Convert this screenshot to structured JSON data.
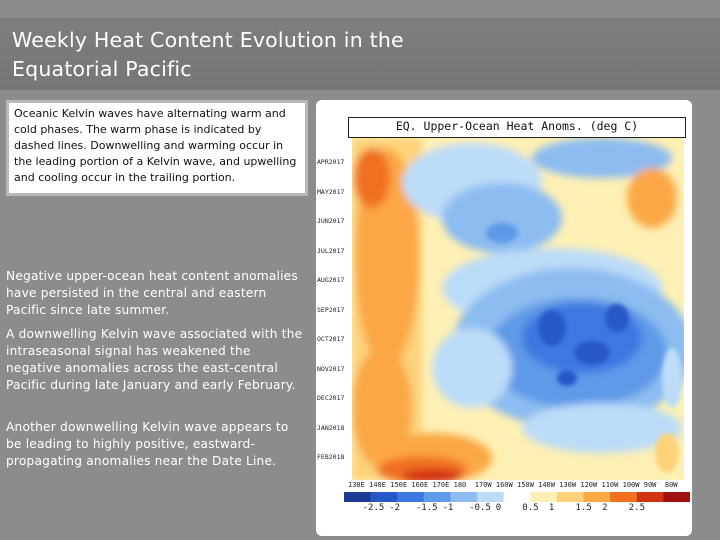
{
  "slide": {
    "title": "Weekly Heat Content Evolution in the Equatorial Pacific",
    "note": "Oceanic Kelvin waves have alternating warm and cold phases. The warm phase is indicated by dashed lines. Downwelling and warming occur in the leading portion of a Kelvin wave, and upwelling and cooling occur in the trailing portion.",
    "paragraphs": [
      "Negative upper-ocean heat content anomalies have persisted in the central and eastern Pacific since late summer.",
      "A downwelling Kelvin wave associated with the intraseasonal signal has weakened the negative anomalies across the east-central Pacific during late January and early February.",
      "Another downwelling Kelvin wave appears to be leading to highly positive, eastward-propagating anomalies near the Date Line."
    ]
  },
  "figure": {
    "title": "EQ. Upper-Ocean Heat Anoms. (deg C)",
    "y_ticks": [
      "APR2017",
      "MAY2017",
      "JUN2017",
      "JUL2017",
      "AUG2017",
      "SEP2017",
      "OCT2017",
      "NOV2017",
      "DEC2017",
      "JAN2018",
      "FEB2018"
    ],
    "x_ticks": [
      "130E",
      "140E",
      "150E",
      "160E",
      "170E",
      "180",
      "170W",
      "160W",
      "150W",
      "140W",
      "130W",
      "120W",
      "110W",
      "100W",
      "90W",
      "80W"
    ],
    "colorbar_labels": [
      "-2.5",
      "-2",
      "-1.5",
      "-1",
      "-0.5",
      "0",
      "0.5",
      "1",
      "1.5",
      "2",
      "2.5"
    ],
    "colorbar_colors": [
      "#1e3c96",
      "#2858c8",
      "#3c78e0",
      "#5f9ae8",
      "#8cbcf0",
      "#bcdcf8",
      "#ffffff",
      "#fdf0b4",
      "#fdd27a",
      "#fba744",
      "#f07020",
      "#d23214",
      "#a01010"
    ]
  }
}
